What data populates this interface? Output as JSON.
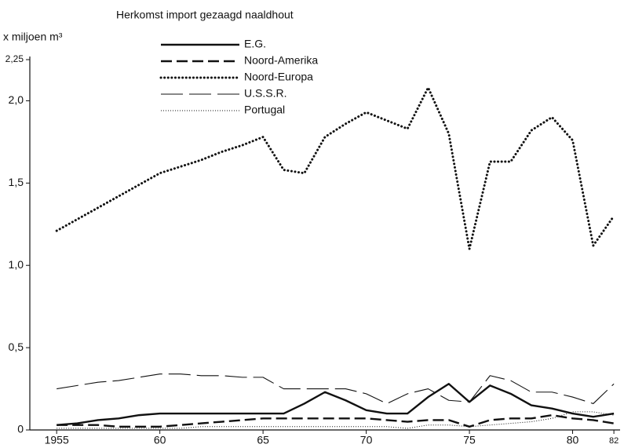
{
  "chart_data": {
    "type": "line",
    "title": "Herkomst import gezaagd naaldhout",
    "y_label": "x miljoen m³",
    "x": [
      1955,
      1956,
      1957,
      1958,
      1959,
      1960,
      1961,
      1962,
      1963,
      1964,
      1965,
      1966,
      1967,
      1968,
      1969,
      1970,
      1971,
      1972,
      1973,
      1974,
      1975,
      1976,
      1977,
      1978,
      1979,
      1980,
      1981,
      1982
    ],
    "series": [
      {
        "name": "E.G.",
        "color": "#111111",
        "style": "solid",
        "values": [
          0.03,
          0.04,
          0.06,
          0.07,
          0.09,
          0.1,
          0.1,
          0.1,
          0.1,
          0.1,
          0.1,
          0.1,
          0.16,
          0.23,
          0.18,
          0.12,
          0.1,
          0.1,
          0.2,
          0.28,
          0.17,
          0.27,
          0.22,
          0.15,
          0.13,
          0.1,
          0.08,
          0.1
        ]
      },
      {
        "name": "Noord-Amerika",
        "color": "#111111",
        "style": "dashed",
        "values": [
          0.03,
          0.03,
          0.03,
          0.02,
          0.02,
          0.02,
          0.03,
          0.04,
          0.05,
          0.06,
          0.07,
          0.07,
          0.07,
          0.07,
          0.07,
          0.07,
          0.06,
          0.05,
          0.06,
          0.06,
          0.02,
          0.06,
          0.07,
          0.07,
          0.09,
          0.07,
          0.06,
          0.04
        ]
      },
      {
        "name": "Noord-Europa",
        "color": "#111111",
        "style": "dotted",
        "values": [
          1.21,
          1.28,
          1.35,
          1.42,
          1.49,
          1.56,
          1.6,
          1.64,
          1.69,
          1.73,
          1.78,
          1.58,
          1.56,
          1.78,
          1.86,
          1.93,
          1.88,
          1.83,
          2.08,
          1.8,
          1.1,
          1.63,
          1.63,
          1.82,
          1.9,
          1.76,
          1.12,
          1.3
        ]
      },
      {
        "name": "U.S.S.R.",
        "color": "#111111",
        "style": "thin-dashed",
        "values": [
          0.25,
          0.27,
          0.29,
          0.3,
          0.32,
          0.34,
          0.34,
          0.33,
          0.33,
          0.32,
          0.32,
          0.25,
          0.25,
          0.25,
          0.25,
          0.22,
          0.16,
          0.22,
          0.25,
          0.18,
          0.17,
          0.33,
          0.3,
          0.23,
          0.23,
          0.2,
          0.16,
          0.28
        ]
      },
      {
        "name": "Portugal",
        "color": "#111111",
        "style": "thin-dotted",
        "values": [
          0.01,
          0.01,
          0.01,
          0.01,
          0.01,
          0.01,
          0.01,
          0.02,
          0.02,
          0.02,
          0.02,
          0.02,
          0.02,
          0.02,
          0.02,
          0.02,
          0.02,
          0.01,
          0.03,
          0.03,
          0.02,
          0.03,
          0.04,
          0.05,
          0.07,
          0.11,
          0.11,
          0.09
        ]
      }
    ],
    "xlim": [
      1953.7,
      1982.3
    ],
    "ylim": [
      0,
      2.25
    ],
    "xticks": [
      1955,
      {
        "value": 1960,
        "label": "60"
      },
      {
        "value": 1965,
        "label": "65"
      },
      {
        "value": 1970,
        "label": "70"
      },
      {
        "value": 1975,
        "label": "75"
      },
      {
        "value": 1980,
        "label": "80"
      },
      {
        "value": 1982,
        "label": "82"
      }
    ],
    "yticks": [
      0,
      {
        "value": 0.5,
        "label": "0,5"
      },
      {
        "value": 1.0,
        "label": "1,0"
      },
      {
        "value": 1.5,
        "label": "1,5"
      },
      {
        "value": 2.0,
        "label": "2,0"
      },
      {
        "value": 2.25,
        "label": "2,25"
      }
    ]
  }
}
